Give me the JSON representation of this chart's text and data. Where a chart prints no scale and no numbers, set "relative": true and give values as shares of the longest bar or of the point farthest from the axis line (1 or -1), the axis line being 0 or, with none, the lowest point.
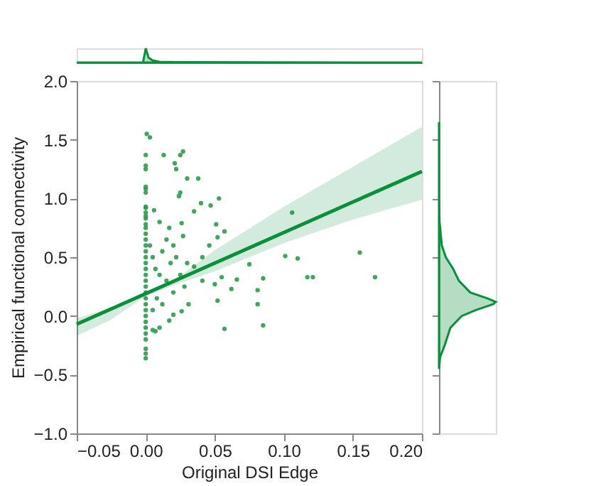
{
  "chart_data": [
    {
      "type": "scatter",
      "xlabel": "Original DSI Edge",
      "ylabel": "Empirical functional connectivity",
      "xlim": [
        -0.05,
        0.2
      ],
      "xticks": [
        {
          "value": -0.05,
          "label": "−0.05"
        },
        {
          "value": 0,
          "label": "0.00"
        },
        {
          "value": 0.05,
          "label": "0.05"
        },
        {
          "value": 0.1,
          "label": "0.10"
        },
        {
          "value": 0.15,
          "label": "0.15"
        },
        {
          "value": 0.2,
          "label": "0.20"
        }
      ],
      "ylim": [
        -1.0,
        2.0
      ],
      "yticks": [
        {
          "value": -1,
          "label": "−1.0"
        },
        {
          "value": -0.5,
          "label": "−0.5"
        },
        {
          "value": 0,
          "label": "0.0"
        },
        {
          "value": 0.5,
          "label": "0.5"
        },
        {
          "value": 1,
          "label": "1.0"
        },
        {
          "value": 1.5,
          "label": "1.5"
        },
        {
          "value": 2,
          "label": "2.0"
        }
      ],
      "grid": false,
      "series": [
        {
          "type": "scatter",
          "marker": "circle",
          "color": "#2e9a4e",
          "x": [
            0.0007,
            0.003,
            0,
            0.013,
            0.021,
            0.022,
            0.027,
            0.025,
            0.03,
            0.038,
            0.025,
            0.024,
            0.04,
            0.047,
            0.053,
            0.035,
            0.051,
            0.026,
            0.027,
            0.052,
            0.057,
            0.046,
            0.041,
            0.075,
            0.101,
            0.11,
            0.106,
            0.155,
            0.166,
            0.117,
            0.121,
            0.066,
            0.062,
            0.081,
            0.081,
            0.085,
            0.057,
            0.052,
            0.055,
            0.085,
            0.05,
            0.041,
            0.035,
            0.031,
            0.02,
            0.026,
            0.017,
            0.01,
            0.007,
            0.005,
            0,
            0,
            0,
            0,
            0,
            0,
            0,
            0,
            0,
            0,
            0,
            0,
            0,
            0,
            0,
            0,
            0,
            0,
            0,
            0,
            0,
            0,
            0,
            0,
            0,
            0,
            0,
            0,
            0,
            0,
            0,
            0,
            0,
            0,
            0.003,
            0.005,
            0.007,
            0.01,
            0.012,
            0.015,
            0.018,
            0.02,
            0.008,
            0.005,
            0.012,
            0.015,
            0.01,
            0.006,
            0.02,
            0.025,
            0.028,
            0.03,
            0.022,
            0.017
          ],
          "values": [
            1.55,
            1.52,
            1.37,
            1.37,
            1.3,
            1.25,
            1.4,
            1.37,
            1.17,
            1.17,
            1.05,
            1.02,
            0.96,
            0.94,
            1.0,
            0.89,
            0.78,
            0.79,
            0.68,
            0.67,
            0.72,
            0.6,
            0.5,
            0.44,
            0.51,
            0.49,
            0.88,
            0.54,
            0.33,
            0.33,
            0.33,
            0.31,
            0.23,
            0.22,
            0.1,
            -0.08,
            -0.11,
            0.13,
            0.33,
            0.32,
            0.27,
            0.3,
            0.42,
            0.1,
            0.01,
            0.04,
            -0.04,
            -0.1,
            -0.13,
            -0.12,
            -0.36,
            -0.32,
            -0.28,
            -0.2,
            -0.15,
            -0.1,
            -0.05,
            0,
            0.05,
            0.1,
            0.15,
            0.2,
            0.25,
            0.3,
            0.35,
            0.4,
            0.45,
            0.5,
            0.55,
            0.6,
            0.65,
            0.7,
            0.75,
            0.78,
            0.85,
            0.93,
            1.05,
            1.1,
            1.25,
            1.28,
            0.83,
            0.88,
            0.92,
            1.08,
            0.6,
            0.5,
            0.4,
            0.35,
            0.55,
            0.3,
            0.45,
            0.2,
            0.15,
            0.05,
            0.1,
            0.65,
            0.8,
            0.9,
            0.6,
            0.35,
            0.25,
            0.45,
            0.5,
            0.75
          ]
        },
        {
          "type": "line",
          "color": "#0a8f3c",
          "line_style": "solid",
          "x": [
            -0.05,
            -0.025,
            0,
            0.025,
            0.05,
            0.1,
            0.15,
            0.2
          ],
          "values": [
            -0.07,
            0.06,
            0.19,
            0.32,
            0.45,
            0.71,
            0.97,
            1.23
          ],
          "lower": [
            -0.17,
            -0.03,
            0.17,
            0.28,
            0.38,
            0.62,
            0.82,
            0.99
          ],
          "upper": [
            -0.02,
            0.07,
            0.21,
            0.34,
            0.56,
            0.93,
            1.27,
            1.61
          ]
        }
      ]
    },
    {
      "type": "area",
      "relative": true,
      "tick_labels": false,
      "xlim": [
        -0.05,
        0.2
      ],
      "series": [
        {
          "color": "#0a8f3c",
          "x": [
            -0.05,
            -0.002,
            0,
            0.002,
            0.005,
            0.01,
            0.03,
            0.1,
            0.2
          ],
          "values": [
            0,
            0,
            1,
            0.35,
            0.15,
            0.05,
            0.02,
            0.01,
            0
          ]
        }
      ]
    },
    {
      "type": "area",
      "relative": true,
      "orientation": "horizontal",
      "tick_labels": false,
      "ylim": [
        -1.0,
        2.0
      ],
      "series": [
        {
          "color": "#0a8f3c",
          "x": [
            -0.45,
            -0.35,
            -0.25,
            -0.1,
            0,
            0.05,
            0.1,
            0.12,
            0.15,
            0.2,
            0.3,
            0.4,
            0.5,
            0.6,
            0.8,
            1.0,
            1.65
          ],
          "values": [
            0,
            0.02,
            0.1,
            0.2,
            0.4,
            0.65,
            0.95,
            1,
            0.85,
            0.55,
            0.35,
            0.25,
            0.12,
            0.05,
            0.01,
            0,
            0
          ]
        }
      ]
    }
  ]
}
